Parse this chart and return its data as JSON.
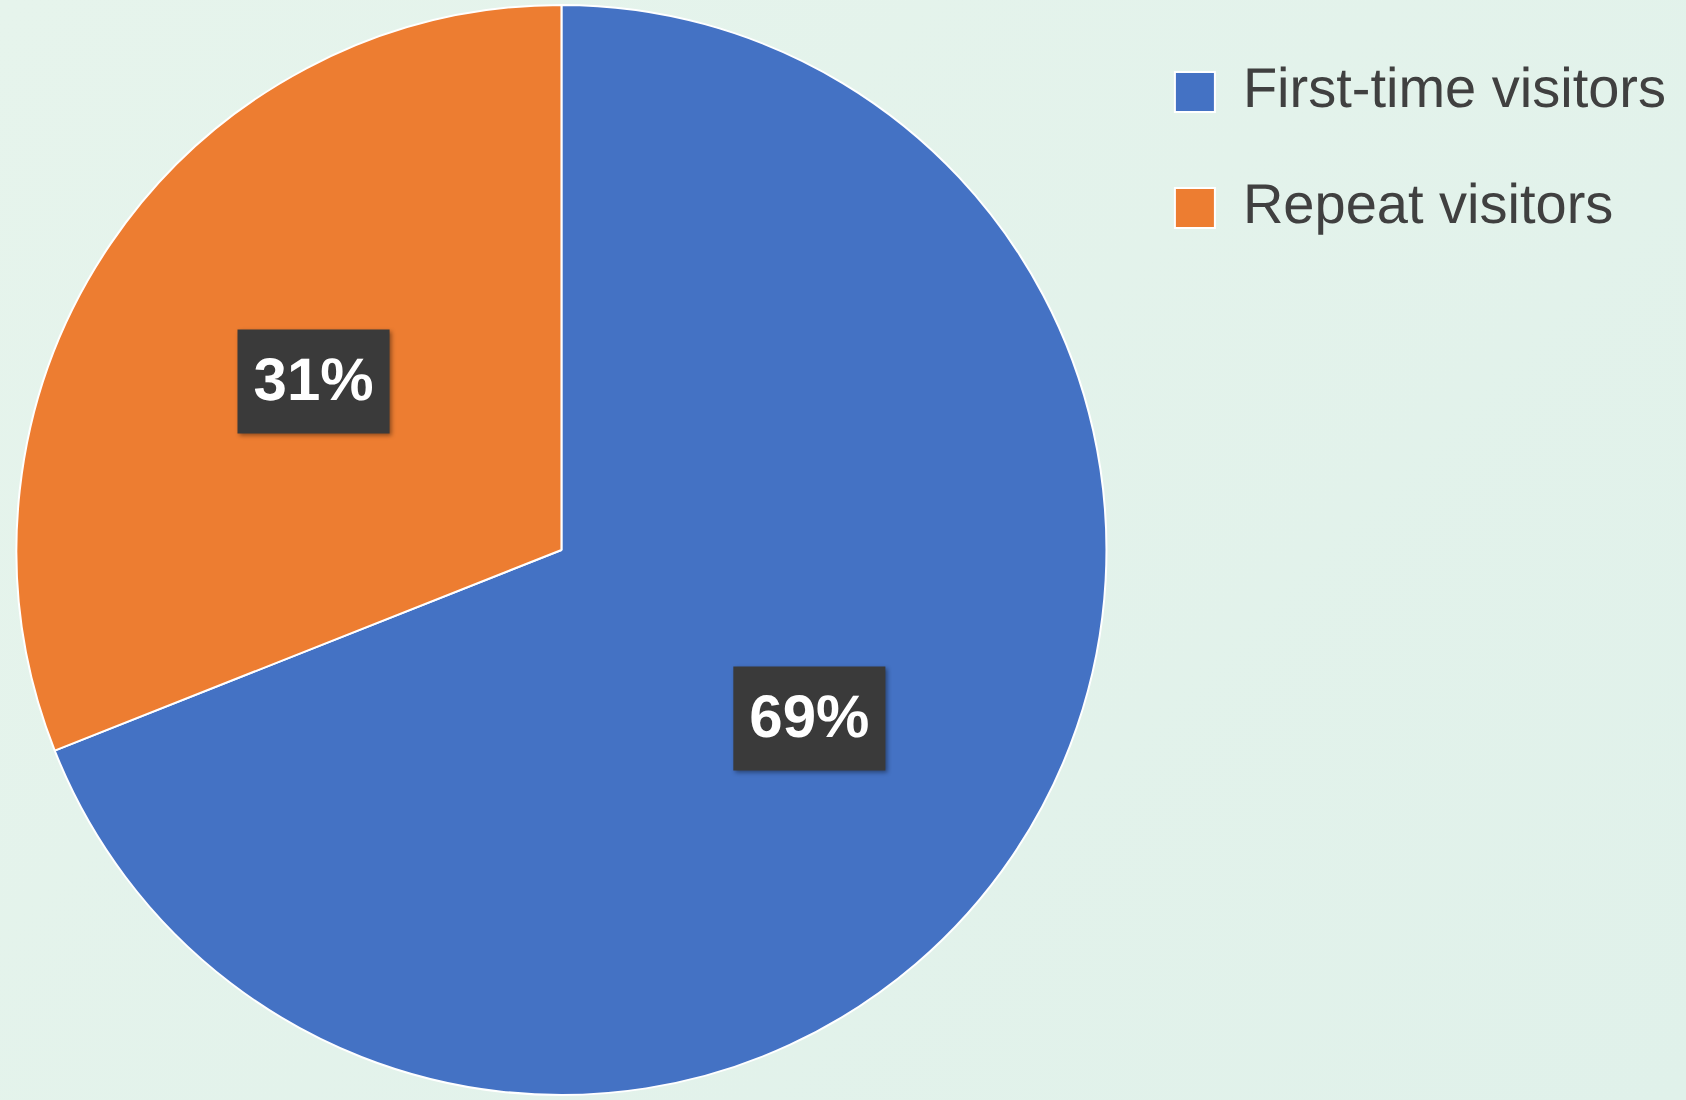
{
  "chart_data": {
    "type": "pie",
    "categories": [
      "First-time visitors",
      "Repeat visitors"
    ],
    "values": [
      69,
      31
    ],
    "colors": [
      "#4472c4",
      "#ed7d31"
    ],
    "value_labels": [
      "69%",
      "31%"
    ],
    "legend": "top right"
  }
}
